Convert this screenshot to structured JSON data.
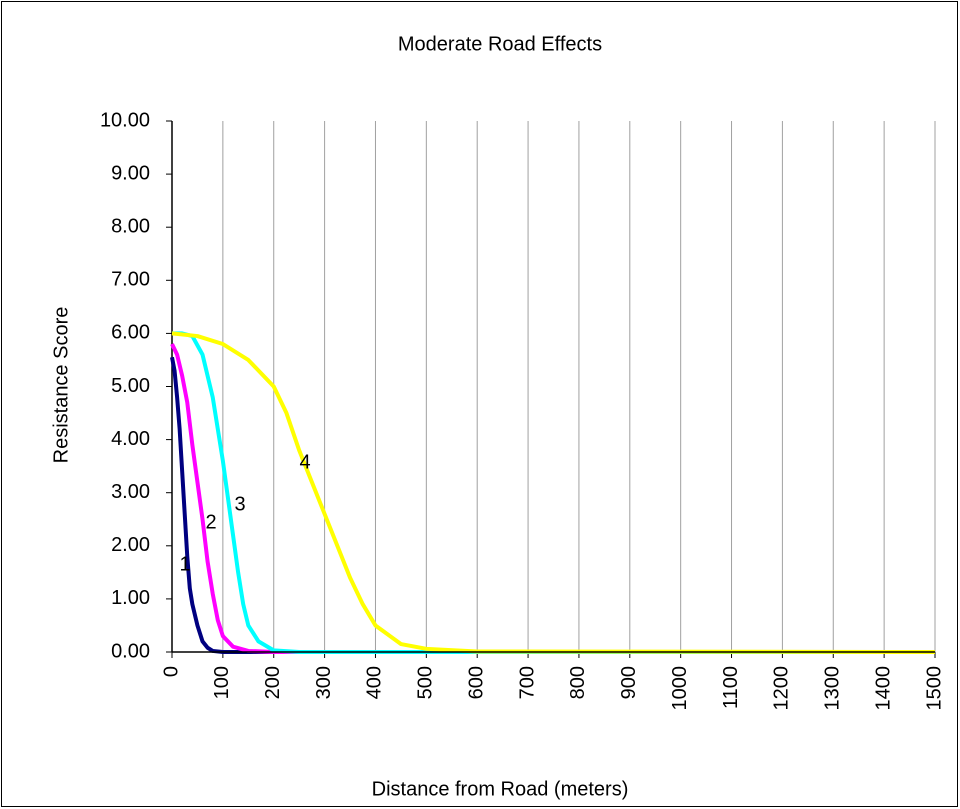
{
  "chart_data": {
    "type": "line",
    "title": "Moderate Road Effects",
    "x_label": "Distance from Road (meters)",
    "y_label": "Resistance Score",
    "xlim": [
      0,
      1500
    ],
    "xticks": [
      0,
      100,
      200,
      300,
      400,
      500,
      600,
      700,
      800,
      900,
      1000,
      1100,
      1200,
      1300,
      1400,
      1500
    ],
    "ylim": [
      0,
      10
    ],
    "yticks": [
      {
        "value": 0,
        "label": "0.00"
      },
      {
        "value": 1,
        "label": "1.00"
      },
      {
        "value": 2,
        "label": "2.00"
      },
      {
        "value": 3,
        "label": "3.00"
      },
      {
        "value": 4,
        "label": "4.00"
      },
      {
        "value": 5,
        "label": "5.00"
      },
      {
        "value": 6,
        "label": "6.00"
      },
      {
        "value": 7,
        "label": "7.00"
      },
      {
        "value": 8,
        "label": "8.00"
      },
      {
        "value": 9,
        "label": "9.00"
      },
      {
        "value": 10,
        "label": "10.00"
      }
    ],
    "grid": "x",
    "annotations": [
      "1",
      "2",
      "3",
      "4"
    ],
    "series": [
      {
        "color": "#000080",
        "x": [
          0,
          5,
          10,
          15,
          20,
          25,
          30,
          35,
          40,
          50,
          60,
          70,
          80,
          100,
          1500
        ],
        "values": [
          5.55,
          5.3,
          4.8,
          4.2,
          3.4,
          2.6,
          1.8,
          1.2,
          0.9,
          0.5,
          0.2,
          0.08,
          0.02,
          0,
          0
        ]
      },
      {
        "color": "#ff00ff",
        "x": [
          0,
          10,
          20,
          30,
          40,
          50,
          60,
          70,
          80,
          90,
          100,
          120,
          150,
          200,
          1500
        ],
        "values": [
          5.8,
          5.6,
          5.2,
          4.7,
          3.9,
          3.2,
          2.5,
          1.7,
          1.1,
          0.6,
          0.3,
          0.1,
          0.02,
          0,
          0
        ]
      },
      {
        "color": "#00ffff",
        "x": [
          0,
          20,
          40,
          60,
          80,
          100,
          110,
          120,
          130,
          140,
          150,
          170,
          200,
          250,
          1500
        ],
        "values": [
          6.0,
          6.0,
          5.95,
          5.6,
          4.8,
          3.6,
          2.9,
          2.2,
          1.5,
          0.9,
          0.5,
          0.2,
          0.03,
          0,
          0
        ]
      },
      {
        "color": "#ffff00",
        "x": [
          0,
          50,
          100,
          150,
          200,
          225,
          250,
          275,
          300,
          325,
          350,
          375,
          400,
          450,
          500,
          600,
          1500
        ],
        "values": [
          6.0,
          5.95,
          5.8,
          5.5,
          5.0,
          4.5,
          3.8,
          3.2,
          2.6,
          2.0,
          1.4,
          0.9,
          0.5,
          0.15,
          0.06,
          0.01,
          0
        ]
      }
    ]
  }
}
